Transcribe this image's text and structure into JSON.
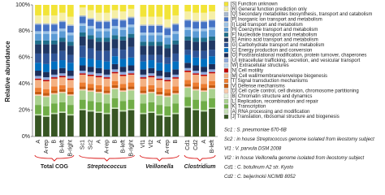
{
  "chart_data": {
    "type": "stacked_bar",
    "y_label": "Relative abundance",
    "ylim": [
      0,
      100
    ],
    "yticks": [
      {
        "value": 0,
        "label": "0%"
      },
      {
        "value": 20,
        "label": "20%"
      },
      {
        "value": 40,
        "label": "40%"
      },
      {
        "value": 60,
        "label": "60%"
      },
      {
        "value": 80,
        "label": "80%"
      },
      {
        "value": 100,
        "label": "100%"
      }
    ],
    "groups": [
      {
        "name": "Total COG",
        "categories": [
          "A",
          "A-rep",
          "B",
          "B-left",
          "B-right"
        ]
      },
      {
        "name": "Streptococcus",
        "categories": [
          "Sc1",
          "Sc2",
          "A",
          "A-rep",
          "B",
          "B-left",
          "B-right"
        ]
      },
      {
        "name": "Veillonella",
        "categories": [
          "Vl1",
          "Vl2",
          "A",
          "A-rep",
          "B"
        ]
      },
      {
        "name": "Clostridium",
        "categories": [
          "Cd1",
          "Cd2",
          "A",
          "B-left"
        ]
      }
    ],
    "series": [
      {
        "name": "[S] Function unknown",
        "color": "#f2e437",
        "values": [
          8,
          8,
          8,
          6,
          9,
          2,
          4,
          6,
          6,
          4,
          5,
          3,
          9,
          9,
          9,
          11,
          8,
          5,
          6,
          6,
          5
        ]
      },
      {
        "name": "[R] General function prediction only",
        "color": "#f6efa6",
        "values": [
          6,
          6,
          6,
          6,
          6,
          6,
          6,
          6,
          6,
          6,
          6,
          6,
          6,
          6,
          6,
          6,
          6,
          6,
          6,
          6,
          6
        ]
      },
      {
        "name": "[Q] Secondary metabolites biosynthesis, transport and catabolism",
        "color": "#a9b9cf",
        "values": [
          1,
          1,
          1,
          1,
          1,
          1,
          1,
          1,
          1,
          1,
          1,
          1,
          1,
          1,
          1,
          1,
          1,
          1,
          1,
          1,
          1
        ]
      },
      {
        "name": "[P] Inorganic ion transport and metabolism",
        "color": "#4472c4",
        "values": [
          5,
          5,
          5,
          5,
          5,
          5,
          5,
          5,
          5,
          5,
          5,
          5,
          5,
          5,
          5,
          5,
          5,
          5,
          5,
          5,
          5
        ]
      },
      {
        "name": "[I] Lipid transport and metabolism",
        "color": "#9dc3e6",
        "values": [
          2,
          2,
          2,
          2,
          2,
          2,
          2,
          2,
          2,
          2,
          2,
          2,
          2,
          2,
          2,
          2,
          2,
          2,
          2,
          2,
          2
        ]
      },
      {
        "name": "[H] Coenzyme transport and metabolism",
        "color": "#5b9bd5",
        "values": [
          5,
          5,
          5,
          5,
          5,
          5,
          5,
          5,
          5,
          5,
          5,
          5,
          5,
          5,
          5,
          5,
          5,
          5,
          5,
          5,
          5
        ]
      },
      {
        "name": "[F] Nucleotide transport and metabolism",
        "color": "#1f6f8b",
        "values": [
          3,
          3,
          3,
          3,
          3,
          3,
          3,
          3,
          3,
          3,
          3,
          3,
          3,
          3,
          3,
          3,
          3,
          3,
          3,
          3,
          3
        ]
      },
      {
        "name": "[E] Amino acid transport and metabolism",
        "color": "#203864",
        "values": [
          7,
          7,
          7,
          7,
          7,
          7,
          7,
          7,
          7,
          7,
          7,
          7,
          7,
          7,
          7,
          7,
          7,
          7,
          7,
          7,
          7
        ]
      },
      {
        "name": "[G] Carbohydrate transport and metabolism",
        "color": "#2f5597",
        "values": [
          7,
          8,
          6,
          7,
          6,
          9,
          8,
          7,
          8,
          6,
          7,
          8,
          5,
          4,
          6,
          5,
          6,
          4,
          5,
          6,
          5
        ]
      },
      {
        "name": "[C] Energy production and conversion",
        "color": "#0070c0",
        "values": [
          6,
          6,
          6,
          6,
          6,
          6,
          6,
          6,
          6,
          6,
          6,
          6,
          6,
          6,
          6,
          6,
          6,
          6,
          6,
          6,
          6
        ]
      },
      {
        "name": "[O] Posttranslational modification, protein turnover, chaperones",
        "color": "#1c2e5a",
        "values": [
          4,
          4,
          4,
          4,
          4,
          4,
          4,
          4,
          4,
          4,
          4,
          4,
          4,
          4,
          4,
          4,
          4,
          4,
          4,
          4,
          4
        ]
      },
      {
        "name": "[U] Intracellular trafficking, secretion, and vesicular transport",
        "color": "#8faadc",
        "values": [
          2,
          2,
          2,
          2,
          2,
          2,
          2,
          2,
          2,
          2,
          2,
          2,
          2,
          2,
          2,
          2,
          2,
          2,
          2,
          2,
          2
        ]
      },
      {
        "name": "[W] Extracellular structures",
        "color": "#bdd7ee",
        "values": [
          0,
          0,
          0,
          0,
          0,
          0,
          0,
          0,
          0,
          0,
          0,
          0,
          0,
          0,
          0,
          0,
          0,
          0,
          0,
          0,
          0
        ]
      },
      {
        "name": "[N] Cell motility",
        "color": "#c00000",
        "values": [
          1,
          1,
          1,
          1,
          1,
          1,
          1,
          1,
          1,
          1,
          1,
          1,
          1,
          1,
          1,
          1,
          1,
          1,
          1,
          1,
          1
        ]
      },
      {
        "name": "[M] Cell wall/membrane/envelope biogenesis",
        "color": "#f4b183",
        "values": [
          6,
          6,
          6,
          6,
          6,
          6,
          6,
          6,
          6,
          6,
          6,
          6,
          6,
          6,
          6,
          6,
          6,
          6,
          6,
          6,
          6
        ]
      },
      {
        "name": "[T] Signal transduction mechanisms",
        "color": "#ed7d31",
        "values": [
          3,
          3,
          3,
          3,
          3,
          3,
          3,
          3,
          3,
          3,
          3,
          3,
          3,
          3,
          3,
          3,
          3,
          3,
          3,
          3,
          3
        ]
      },
      {
        "name": "[V] Defense mechanisms",
        "color": "#c55a11",
        "values": [
          2,
          2,
          2,
          2,
          2,
          2,
          2,
          2,
          2,
          2,
          2,
          2,
          2,
          2,
          2,
          2,
          2,
          2,
          2,
          2,
          2
        ]
      },
      {
        "name": "[D] Cell cycle control, cell division, chromosome partitioning",
        "color": "#f8cbad",
        "values": [
          1,
          1,
          1,
          1,
          1,
          1,
          1,
          1,
          1,
          1,
          1,
          1,
          1,
          1,
          1,
          1,
          1,
          1,
          1,
          1,
          1
        ]
      },
      {
        "name": "[B] Chromatin structure and dynamics",
        "color": "#e2f0d9",
        "values": [
          0,
          0,
          0,
          0,
          0,
          0,
          0,
          0,
          0,
          0,
          0,
          0,
          0,
          0,
          0,
          0,
          0,
          0,
          0,
          0,
          0
        ]
      },
      {
        "name": "[L] Replication, recombination and repair",
        "color": "#a9d18e",
        "values": [
          7,
          7,
          7,
          7,
          7,
          7,
          7,
          7,
          7,
          7,
          7,
          7,
          7,
          7,
          7,
          7,
          7,
          7,
          7,
          7,
          7
        ]
      },
      {
        "name": "[K] Transcription",
        "color": "#70ad47",
        "values": [
          7,
          7,
          7,
          7,
          7,
          7,
          7,
          7,
          7,
          7,
          7,
          7,
          7,
          7,
          7,
          7,
          7,
          7,
          7,
          7,
          7
        ]
      },
      {
        "name": "[A] RNA processing and modification",
        "color": "#c5e0b4",
        "values": [
          1,
          1,
          1,
          1,
          1,
          1,
          1,
          1,
          1,
          1,
          1,
          1,
          1,
          1,
          1,
          1,
          1,
          1,
          1,
          1,
          1
        ]
      },
      {
        "name": "[J] Translation, ribosomal structure and biogenesis",
        "color": "#375623",
        "values": [
          16,
          15,
          17,
          18,
          16,
          20,
          19,
          18,
          17,
          21,
          19,
          20,
          17,
          18,
          16,
          15,
          17,
          22,
          20,
          19,
          21
        ]
      }
    ],
    "notes": [
      "Sc1 : S. pneumoniae 670-6B",
      "Sc2 : in house Streptococcus genome isolated from ileostomy subject",
      "Vl1 : V. parvula DSM 2008",
      "Vl2 : in house Veillonella genome isolated from ileostomy subject",
      "Cd1 : C. botulinum A2 str. Kyoto",
      "Cd2 : C. beijerinckii NCIMB 8052"
    ]
  }
}
